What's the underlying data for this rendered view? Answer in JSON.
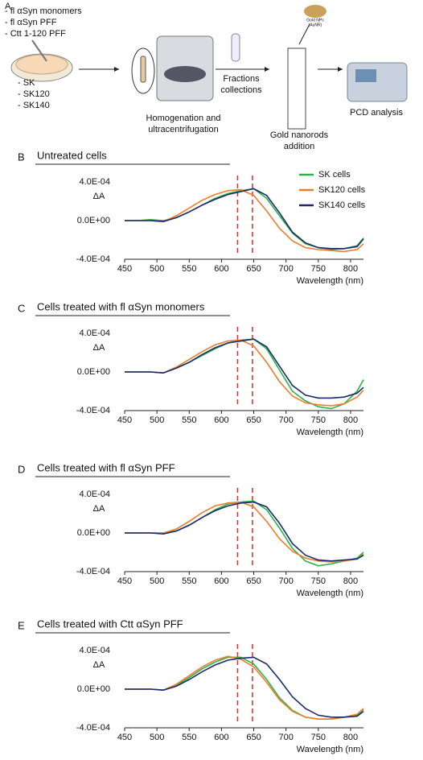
{
  "panel_a": {
    "label": "A",
    "treatments": [
      "- fl αSyn monomers",
      "- fl αSyn  PFF",
      "- Ctt 1-120 PFF"
    ],
    "cells": [
      "- SK",
      "- SK120",
      "- SK140"
    ],
    "steps": [
      [
        "Homogenation and",
        "ultracentrifugation"
      ],
      [
        "Fractions",
        "collections"
      ],
      [
        "Gold nanorods",
        "addition"
      ],
      [
        "PCD analysis"
      ]
    ],
    "gold_np": [
      "Gold NPs",
      "(AuNR)"
    ]
  },
  "chart_data": [
    {
      "type": "line",
      "label": "B",
      "title": "Untreated cells",
      "x_label": "Wavelength (nm)",
      "y_label": "ΔA",
      "legend": "top-right",
      "x": [
        450,
        470,
        490,
        510,
        530,
        550,
        570,
        590,
        610,
        630,
        650,
        670,
        690,
        710,
        730,
        750,
        770,
        790,
        810,
        820
      ],
      "xlim": [
        450,
        820
      ],
      "xticks": [
        450,
        500,
        550,
        600,
        650,
        700,
        750,
        800
      ],
      "ylim": [
        -0.0004,
        0.0005
      ],
      "yticks": [
        {
          "value": 0.0004,
          "label": "4.0E-04"
        },
        {
          "value": 0,
          "label": "0.0E+00"
        },
        {
          "value": -0.0004,
          "label": "-4.0E-04"
        }
      ],
      "vlines": [
        625,
        648
      ],
      "vline_color": "#d9302c",
      "series": [
        {
          "name": "SK cells",
          "color": "#2bb34a",
          "values": [
            0,
            0,
            1e-05,
            0,
            3e-05,
            9e-05,
            0.00016,
            0.00023,
            0.00028,
            0.00031,
            0.00033,
            0.00023,
            5e-05,
            -0.00013,
            -0.00024,
            -0.00028,
            -0.0003,
            -0.00029,
            -0.00026,
            -0.00018
          ]
        },
        {
          "name": "SK120 cells",
          "color": "#ee7d2b",
          "values": [
            0,
            0,
            0,
            -1e-05,
            5e-05,
            0.00013,
            0.00021,
            0.00027,
            0.00031,
            0.00032,
            0.00026,
            0.0001,
            -8e-05,
            -0.00021,
            -0.00028,
            -0.0003,
            -0.00031,
            -0.00032,
            -0.0003,
            -0.00024
          ]
        },
        {
          "name": "SK140 cells",
          "color": "#1c2a6b",
          "values": [
            0,
            0,
            0,
            -1e-05,
            3e-05,
            9e-05,
            0.00016,
            0.00022,
            0.00027,
            0.0003,
            0.00033,
            0.00026,
            8e-05,
            -0.00012,
            -0.00023,
            -0.00028,
            -0.00029,
            -0.00029,
            -0.00027,
            -0.00019
          ]
        }
      ]
    },
    {
      "type": "line",
      "label": "C",
      "title": "Cells treated with fl αSyn monomers",
      "x_label": "Wavelength (nm)",
      "y_label": "ΔA",
      "x": [
        450,
        470,
        490,
        510,
        530,
        550,
        570,
        590,
        610,
        630,
        650,
        670,
        690,
        710,
        730,
        750,
        770,
        790,
        810,
        820
      ],
      "xlim": [
        450,
        820
      ],
      "xticks": [
        450,
        500,
        550,
        600,
        650,
        700,
        750,
        800
      ],
      "ylim": [
        -0.0004,
        0.0005
      ],
      "yticks": [
        {
          "value": 0.0004,
          "label": "4.0E-04"
        },
        {
          "value": 0,
          "label": "0.0E+00"
        },
        {
          "value": -0.0004,
          "label": "-4.0E-04"
        }
      ],
      "vlines": [
        625,
        648
      ],
      "vline_color": "#d9302c",
      "series": [
        {
          "color": "#2bb34a",
          "values": [
            0,
            0,
            0,
            -1e-05,
            4e-05,
            0.0001,
            0.00017,
            0.00024,
            0.0003,
            0.00033,
            0.00034,
            0.00024,
            2e-05,
            -0.0002,
            -0.0003,
            -0.00036,
            -0.00038,
            -0.00033,
            -0.0002,
            -8e-05
          ]
        },
        {
          "color": "#ee7d2b",
          "values": [
            0,
            0,
            0,
            -1e-05,
            5e-05,
            0.00013,
            0.00021,
            0.00028,
            0.00032,
            0.00033,
            0.00027,
            0.0001,
            -0.0001,
            -0.00025,
            -0.00032,
            -0.00034,
            -0.00035,
            -0.00033,
            -0.00026,
            -0.00019
          ]
        },
        {
          "color": "#1c2a6b",
          "values": [
            0,
            0,
            0,
            -1e-05,
            4e-05,
            0.0001,
            0.00018,
            0.00025,
            0.0003,
            0.00032,
            0.00034,
            0.00026,
            6e-05,
            -0.00014,
            -0.00024,
            -0.00027,
            -0.00027,
            -0.00026,
            -0.00022,
            -0.00016
          ]
        }
      ]
    },
    {
      "type": "line",
      "label": "D",
      "title": "Cells treated with fl αSyn PFF",
      "x_label": "Wavelength (nm)",
      "y_label": "ΔA",
      "x": [
        450,
        470,
        490,
        510,
        530,
        550,
        570,
        590,
        610,
        630,
        650,
        670,
        690,
        710,
        730,
        750,
        770,
        790,
        810,
        820
      ],
      "xlim": [
        450,
        820
      ],
      "xticks": [
        450,
        500,
        550,
        600,
        650,
        700,
        750,
        800
      ],
      "ylim": [
        -0.0004,
        0.0005
      ],
      "yticks": [
        {
          "value": 0.0004,
          "label": "4.0E-04"
        },
        {
          "value": 0,
          "label": "0.0E+00"
        },
        {
          "value": -0.0004,
          "label": "-4.0E-04"
        }
      ],
      "vlines": [
        625,
        648
      ],
      "vline_color": "#d9302c",
      "series": [
        {
          "color": "#2bb34a",
          "values": [
            0,
            0,
            0,
            0,
            2e-05,
            8e-05,
            0.00016,
            0.00024,
            0.0003,
            0.00032,
            0.00033,
            0.00024,
            5e-05,
            -0.00016,
            -0.00029,
            -0.00034,
            -0.00032,
            -0.00029,
            -0.00026,
            -0.0002
          ]
        },
        {
          "color": "#ee7d2b",
          "values": [
            0,
            0,
            0,
            0,
            4e-05,
            0.00012,
            0.00021,
            0.00028,
            0.00031,
            0.00032,
            0.00027,
            0.00012,
            -6e-05,
            -0.00019,
            -0.00026,
            -0.00029,
            -0.0003,
            -0.00029,
            -0.00027,
            -0.00022
          ]
        },
        {
          "color": "#1c2a6b",
          "values": [
            0,
            0,
            0,
            -1e-05,
            2e-05,
            8e-05,
            0.00016,
            0.00023,
            0.00028,
            0.00031,
            0.00032,
            0.00027,
            0.0001,
            -0.00011,
            -0.00023,
            -0.00028,
            -0.00029,
            -0.00028,
            -0.00027,
            -0.00023
          ]
        }
      ]
    },
    {
      "type": "line",
      "label": "E",
      "title": "Cells treated with Ctt αSyn PFF",
      "x_label": "Wavelength (nm)",
      "y_label": "ΔA",
      "x": [
        450,
        470,
        490,
        510,
        530,
        550,
        570,
        590,
        610,
        630,
        650,
        670,
        690,
        710,
        730,
        750,
        770,
        790,
        810,
        820
      ],
      "xlim": [
        450,
        820
      ],
      "xticks": [
        450,
        500,
        550,
        600,
        650,
        700,
        750,
        800
      ],
      "ylim": [
        -0.0004,
        0.0005
      ],
      "yticks": [
        {
          "value": 0.0004,
          "label": "4.0E-04"
        },
        {
          "value": 0,
          "label": "0.0E+00"
        },
        {
          "value": -0.0004,
          "label": "-4.0E-04"
        }
      ],
      "vlines": [
        625,
        648
      ],
      "vline_color": "#d9302c",
      "series": [
        {
          "color": "#2bb34a",
          "values": [
            0,
            0,
            0,
            -1e-05,
            4e-05,
            0.00012,
            0.00021,
            0.00028,
            0.00033,
            0.00033,
            0.00026,
            0.0001,
            -9e-05,
            -0.00022,
            -0.00029,
            -0.00031,
            -0.00031,
            -0.00029,
            -0.00027,
            -0.00021
          ]
        },
        {
          "color": "#ee7d2b",
          "values": [
            0,
            0,
            0,
            -1e-05,
            5e-05,
            0.00014,
            0.00023,
            0.0003,
            0.00034,
            0.00031,
            0.00023,
            7e-05,
            -0.00011,
            -0.00023,
            -0.00029,
            -0.00031,
            -0.00031,
            -0.00029,
            -0.00026,
            -0.0002
          ]
        },
        {
          "color": "#1c2a6b",
          "values": [
            0,
            0,
            0,
            -1e-05,
            3e-05,
            0.0001,
            0.00018,
            0.00025,
            0.0003,
            0.00032,
            0.00033,
            0.00026,
            0.0001,
            -8e-05,
            -0.0002,
            -0.00027,
            -0.00029,
            -0.00029,
            -0.00028,
            -0.00023
          ]
        }
      ]
    }
  ]
}
